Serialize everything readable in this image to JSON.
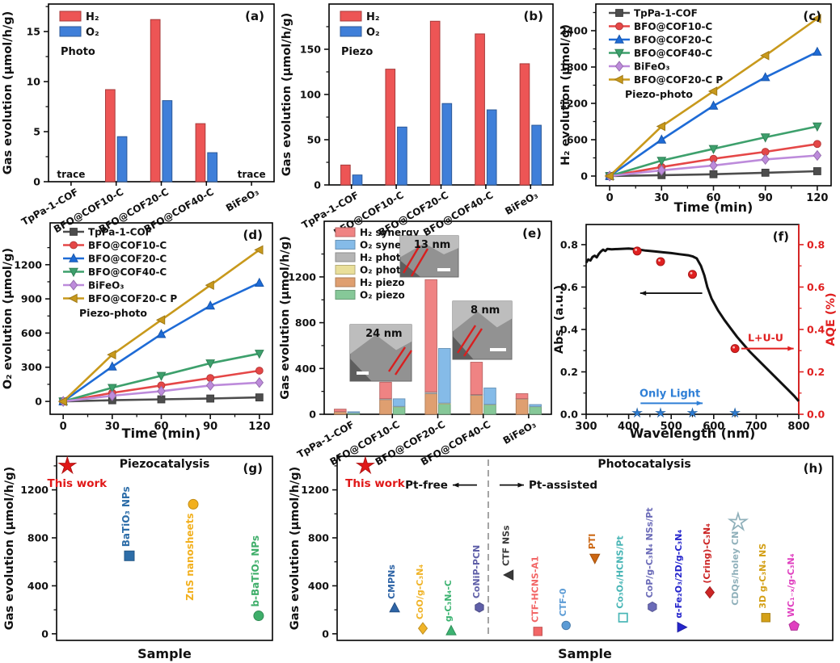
{
  "figure": {
    "description": "Eight-panel photocatalysis / piezocatalysis gas evolution figure",
    "panel_tags": [
      "(a)",
      "(b)",
      "(c)",
      "(d)",
      "(e)",
      "(f)",
      "(g)",
      "(h)"
    ]
  },
  "chart_data": [
    {
      "id": "a",
      "type": "bar",
      "tag": "(a)",
      "note": "Photo",
      "ylabel": "Gas evolution (μmol/h/g)",
      "categories": [
        "TpPa-1-COF",
        "BFO@COF10-C",
        "BFO@COF20-C",
        "BFO@COF40-C",
        "BiFeO₃"
      ],
      "series": [
        {
          "name": "H₂",
          "color": "#ed5555",
          "values": [
            0,
            9.2,
            16.2,
            5.8,
            0
          ]
        },
        {
          "name": "O₂",
          "color": "#3f7fd9",
          "values": [
            0,
            4.5,
            8.1,
            2.9,
            0
          ]
        }
      ],
      "ylim": [
        0,
        17.75
      ],
      "yticks": [
        0,
        5,
        10,
        15
      ],
      "annotations": [
        {
          "text": "trace",
          "ci": 0
        },
        {
          "text": "trace",
          "ci": 4
        }
      ]
    },
    {
      "id": "b",
      "type": "bar",
      "tag": "(b)",
      "note": "Piezo",
      "ylabel": "Gas evolution (μmol/h/g)",
      "categories": [
        "TpPa-1-COF",
        "BFO@COF10-C",
        "BFO@COF20-C",
        "BFO@COF40-C",
        "BiFeO₃"
      ],
      "series": [
        {
          "name": "H₂",
          "color": "#ed5555",
          "values": [
            22,
            128,
            181,
            167,
            134
          ]
        },
        {
          "name": "O₂",
          "color": "#3f7fd9",
          "values": [
            11,
            64,
            90,
            83,
            66
          ]
        }
      ],
      "ylim": [
        0,
        200
      ],
      "yticks": [
        0,
        50,
        100,
        150
      ],
      "annotations": []
    },
    {
      "id": "c",
      "type": "line",
      "tag": "(c)",
      "note": "Piezo-photo",
      "xlabel": "Time (min)",
      "ylabel": "H₂ evolution (μmol/g)",
      "x": [
        0,
        30,
        60,
        90,
        120
      ],
      "xlim": [
        -8,
        128
      ],
      "xticks": [
        0,
        30,
        60,
        90,
        120
      ],
      "ylim": [
        -160,
        2840
      ],
      "yticks": [
        0,
        600,
        1200,
        1800,
        2400
      ],
      "series": [
        {
          "name": "TpPa-1-COF",
          "color": "#4d4d4d",
          "marker": "square",
          "values": [
            0,
            15,
            30,
            55,
            80
          ]
        },
        {
          "name": "BFO@COF10-C",
          "color": "#e54747",
          "marker": "circle",
          "values": [
            0,
            150,
            285,
            400,
            530
          ]
        },
        {
          "name": "BFO@COF20-C",
          "color": "#1e6bd6",
          "marker": "triangle-up",
          "values": [
            0,
            600,
            1160,
            1630,
            2050
          ]
        },
        {
          "name": "BFO@COF40-C",
          "color": "#3da06c",
          "marker": "triangle-down",
          "values": [
            0,
            255,
            450,
            640,
            820
          ]
        },
        {
          "name": "BiFeO₃",
          "color": "#bd8bdb",
          "marker": "diamond",
          "values": [
            0,
            95,
            175,
            275,
            340
          ]
        },
        {
          "name": "BFO@COF20-C P",
          "color": "#c8991c",
          "marker": "triangle-left",
          "values": [
            0,
            820,
            1400,
            1990,
            2600
          ]
        }
      ]
    },
    {
      "id": "d",
      "type": "line",
      "tag": "(d)",
      "note": "Piezo-photo",
      "xlabel": "Time (min)",
      "ylabel": "O₂ evolution (μmol/g)",
      "x": [
        0,
        30,
        60,
        90,
        120
      ],
      "xlim": [
        -8,
        128
      ],
      "xticks": [
        0,
        30,
        60,
        90,
        120
      ],
      "ylim": [
        -113,
        1567
      ],
      "yticks": [
        0,
        300,
        600,
        900,
        1200
      ],
      "series": [
        {
          "name": "TpPa-1-COF",
          "color": "#4d4d4d",
          "marker": "square",
          "values": [
            0,
            10,
            18,
            25,
            35
          ]
        },
        {
          "name": "BFO@COF10-C",
          "color": "#e54747",
          "marker": "circle",
          "values": [
            0,
            75,
            140,
            205,
            270
          ]
        },
        {
          "name": "BFO@COF20-C",
          "color": "#1e6bd6",
          "marker": "triangle-up",
          "values": [
            0,
            305,
            590,
            840,
            1040
          ]
        },
        {
          "name": "BFO@COF40-C",
          "color": "#3da06c",
          "marker": "triangle-down",
          "values": [
            0,
            120,
            225,
            335,
            420
          ]
        },
        {
          "name": "BiFeO₃",
          "color": "#bd8bdb",
          "marker": "diamond",
          "values": [
            0,
            50,
            90,
            140,
            165
          ]
        },
        {
          "name": "BFO@COF20-C P",
          "color": "#c8991c",
          "marker": "triangle-left",
          "values": [
            0,
            410,
            715,
            1020,
            1330
          ]
        }
      ]
    },
    {
      "id": "e",
      "type": "stacked-bar",
      "tag": "(e)",
      "ylabel": "Gas evolution (μmol/h/g)",
      "categories": [
        "TpPa-1-COF",
        "BFO@COF10-C",
        "BFO@COF20-C",
        "BFO@COF40-C",
        "BiFeO₃"
      ],
      "ylim": [
        0,
        1686
      ],
      "yticks": [
        0,
        400,
        800,
        1200
      ],
      "legend": [
        {
          "name": "H₂ synergy",
          "color": "#ef8383"
        },
        {
          "name": "O₂ synergy",
          "color": "#85bbe8"
        },
        {
          "name": "H₂ photo",
          "color": "#b5b5b5"
        },
        {
          "name": "O₂ photo",
          "color": "#e9df9a"
        },
        {
          "name": "H₂ piezo",
          "color": "#df9f70"
        },
        {
          "name": "O₂ piezo",
          "color": "#86c898"
        }
      ],
      "stacks": {
        "h2": {
          "piezo": [
            22,
            128,
            180,
            167,
            134
          ],
          "photo": [
            2,
            9,
            16,
            6,
            3
          ],
          "synergy": [
            21,
            143,
            980,
            282,
            43
          ]
        },
        "o2": {
          "piezo": [
            11,
            64,
            90,
            83,
            66
          ],
          "photo": [
            1,
            5,
            8,
            4,
            2
          ],
          "synergy": [
            10,
            66,
            477,
            143,
            17
          ]
        }
      },
      "insets": [
        {
          "label": "24 nm"
        },
        {
          "label": "13 nm"
        },
        {
          "label": "8 nm"
        }
      ]
    },
    {
      "id": "f",
      "type": "spectrum",
      "tag": "(f)",
      "xlabel": "Wavelength (nm)",
      "ylabel_left": "Abs. (a.u.)",
      "ylabel_right": "AQE (%)",
      "xlim": [
        300,
        800
      ],
      "xticks": [
        300,
        400,
        500,
        600,
        700,
        800
      ],
      "ylim": [
        0,
        0.895
      ],
      "yticks": [
        0.0,
        0.2,
        0.4,
        0.6,
        0.8
      ],
      "abs_color": "#111111",
      "aqe_color": "#e02020",
      "light_color": "#2f7fd6",
      "abs_curve": [
        [
          300,
          0.715
        ],
        [
          305,
          0.73
        ],
        [
          310,
          0.725
        ],
        [
          315,
          0.742
        ],
        [
          320,
          0.748
        ],
        [
          325,
          0.74
        ],
        [
          330,
          0.757
        ],
        [
          335,
          0.768
        ],
        [
          340,
          0.776
        ],
        [
          345,
          0.77
        ],
        [
          350,
          0.78
        ],
        [
          360,
          0.778
        ],
        [
          380,
          0.78
        ],
        [
          400,
          0.782
        ],
        [
          420,
          0.778
        ],
        [
          440,
          0.772
        ],
        [
          460,
          0.768
        ],
        [
          480,
          0.764
        ],
        [
          500,
          0.76
        ],
        [
          520,
          0.755
        ],
        [
          540,
          0.75
        ],
        [
          550,
          0.745
        ],
        [
          560,
          0.735
        ],
        [
          570,
          0.7
        ],
        [
          578,
          0.655
        ],
        [
          585,
          0.6
        ],
        [
          595,
          0.545
        ],
        [
          610,
          0.49
        ],
        [
          625,
          0.445
        ],
        [
          640,
          0.405
        ],
        [
          655,
          0.365
        ],
        [
          670,
          0.33
        ],
        [
          685,
          0.295
        ],
        [
          700,
          0.265
        ],
        [
          715,
          0.235
        ],
        [
          730,
          0.205
        ],
        [
          745,
          0.175
        ],
        [
          760,
          0.145
        ],
        [
          775,
          0.115
        ],
        [
          790,
          0.085
        ],
        [
          800,
          0.062
        ]
      ],
      "aqe_points": [
        [
          420,
          0.77
        ],
        [
          475,
          0.72
        ],
        [
          550,
          0.66
        ],
        [
          650,
          0.31
        ]
      ],
      "light_points": [
        [
          420,
          0.006
        ],
        [
          475,
          0.006
        ],
        [
          550,
          0.006
        ],
        [
          650,
          0.006
        ]
      ],
      "labels": {
        "aqe": "L+U-U",
        "light": "Only Light"
      }
    },
    {
      "id": "g",
      "type": "scatter-labeled",
      "tag": "(g)",
      "title": "Piezocatalysis",
      "xlabel": "Sample",
      "ylabel": "Gas evolution (μmol/h/g)",
      "ylim": [
        -55,
        1480
      ],
      "yticks": [
        0,
        400,
        800,
        1200
      ],
      "points": [
        {
          "label": "This work",
          "x": 0.05,
          "value": 1400,
          "marker": "star",
          "color": "#e01818",
          "label_style": "horizontal-below"
        },
        {
          "label": "BaTiO₃ NPs",
          "x": 0.337,
          "value": 650,
          "marker": "square",
          "color": "#2d6da8"
        },
        {
          "label": "ZnS nanosheets",
          "x": 0.633,
          "value": 1080,
          "marker": "circle",
          "color": "#f2b01e",
          "label_side": "below"
        },
        {
          "label": "b-BaTiO₃ NPs",
          "x": 0.936,
          "value": 150,
          "marker": "circle",
          "color": "#3fae6a"
        }
      ]
    },
    {
      "id": "h",
      "type": "scatter-labeled",
      "tag": "(h)",
      "title": "Photocatalysis",
      "xlabel": "Sample",
      "ylabel": "Gas evolution (μmol/h/g)",
      "ylim": [
        -55,
        1480
      ],
      "yticks": [
        0,
        400,
        800,
        1200
      ],
      "divider_x": 0.305,
      "zone_labels": {
        "left": "Pt-free",
        "right": "Pt-assisted"
      },
      "points": [
        {
          "label": "This work",
          "x": 0.057,
          "value": 1400,
          "marker": "star",
          "color": "#e01818",
          "label_style": "horizontal-below"
        },
        {
          "label": "CMPNs",
          "x": 0.116,
          "value": 215,
          "marker": "triangle-up",
          "color": "#2e64a6"
        },
        {
          "label": "CoO/g-C₃N₄",
          "x": 0.173,
          "value": 45,
          "marker": "diamond",
          "color": "#f0b429"
        },
        {
          "label": "g-C₃N₄-C",
          "x": 0.23,
          "value": 25,
          "marker": "triangle-up",
          "color": "#3cb371"
        },
        {
          "label": "CoNiP-PCN",
          "x": 0.287,
          "value": 220,
          "marker": "hexagon",
          "color": "#5f5fa8"
        },
        {
          "label": "CTF NSs",
          "x": 0.347,
          "value": 490,
          "marker": "triangle-left",
          "color": "#3a3a3a"
        },
        {
          "label": "CTF-HCNS-A1",
          "x": 0.405,
          "value": 20,
          "marker": "square",
          "color": "#f26666"
        },
        {
          "label": "CTF-0",
          "x": 0.462,
          "value": 70,
          "marker": "circle",
          "color": "#5b9bd5"
        },
        {
          "label": "PTI",
          "x": 0.52,
          "value": 630,
          "marker": "triangle-down",
          "color": "#cc6611"
        },
        {
          "label": "Co₃O₄/HCNS/Pt",
          "x": 0.577,
          "value": 135,
          "marker": "square",
          "color": "#49b6b6",
          "open": true
        },
        {
          "label": "CoP/g-C₃N₄ NSs/Pt",
          "x": 0.636,
          "value": 225,
          "marker": "hexagon",
          "color": "#6b6bb8"
        },
        {
          "label": "α-Fe₂O₃/2D/g-C₃N₄",
          "x": 0.695,
          "value": 55,
          "marker": "triangle-right",
          "color": "#2525cc"
        },
        {
          "label": "(Cring)-C₃N₄",
          "x": 0.752,
          "value": 345,
          "marker": "diamond",
          "color": "#cc2525"
        },
        {
          "label": "CDQs/holey CN",
          "x": 0.809,
          "value": 930,
          "marker": "star",
          "color": "#8fb0ba",
          "open": true,
          "label_side": "below"
        },
        {
          "label": "3D g-C₃N₄ NS",
          "x": 0.865,
          "value": 135,
          "marker": "square",
          "color": "#d4a017"
        },
        {
          "label": "WC₁₋ₓ/g-C₃N₄",
          "x": 0.922,
          "value": 65,
          "marker": "pentagon",
          "color": "#e040c0"
        }
      ]
    }
  ]
}
